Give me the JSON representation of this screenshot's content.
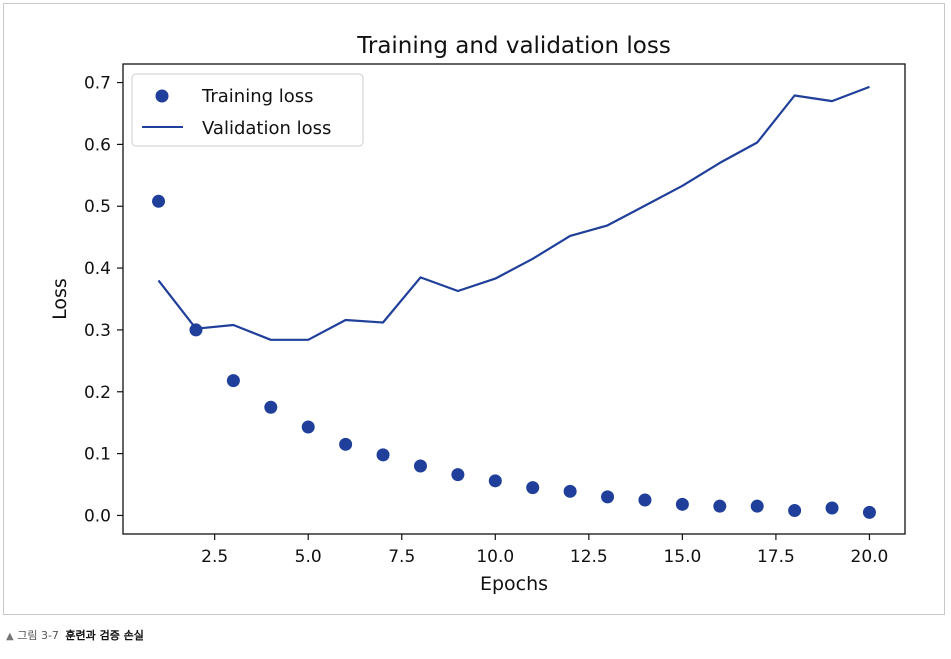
{
  "chart_data": {
    "type": "line",
    "title": "Training and validation loss",
    "xlabel": "Epochs",
    "ylabel": "Loss",
    "xlim": [
      0.05,
      20.95
    ],
    "ylim": [
      -0.03,
      0.73
    ],
    "x_ticks": [
      2.5,
      5.0,
      7.5,
      10.0,
      12.5,
      15.0,
      17.5,
      20.0
    ],
    "y_ticks": [
      0.0,
      0.1,
      0.2,
      0.3,
      0.4,
      0.5,
      0.6,
      0.7
    ],
    "x": [
      1,
      2,
      3,
      4,
      5,
      6,
      7,
      8,
      9,
      10,
      11,
      12,
      13,
      14,
      15,
      16,
      17,
      18,
      19,
      20
    ],
    "grid": false,
    "legend_position": "top-left",
    "color": "#1f3f9a",
    "series": [
      {
        "name": "Training loss",
        "style": "markers",
        "values": [
          0.508,
          0.3,
          0.218,
          0.175,
          0.143,
          0.115,
          0.098,
          0.08,
          0.066,
          0.056,
          0.045,
          0.039,
          0.03,
          0.025,
          0.018,
          0.015,
          0.015,
          0.008,
          0.012,
          0.005
        ]
      },
      {
        "name": "Validation loss",
        "style": "line",
        "values": [
          0.38,
          0.302,
          0.308,
          0.284,
          0.284,
          0.316,
          0.312,
          0.385,
          0.363,
          0.383,
          0.415,
          0.452,
          0.469,
          0.501,
          0.533,
          0.57,
          0.603,
          0.679,
          0.67,
          0.693
        ]
      }
    ]
  },
  "caption": {
    "marker": "▲",
    "label": "그림 3-7",
    "title": "훈련과 검증 손실"
  }
}
